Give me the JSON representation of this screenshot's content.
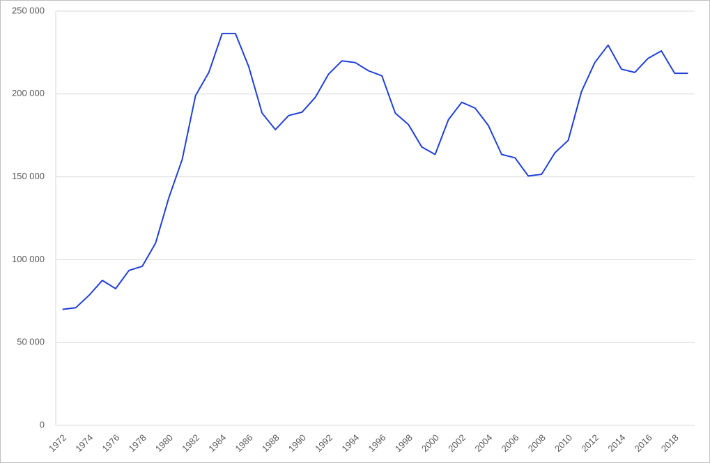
{
  "chart_data": {
    "type": "line",
    "categories": [
      "1972",
      null,
      "1974",
      null,
      "1976",
      null,
      "1978",
      null,
      "1980",
      null,
      "1982",
      null,
      "1984",
      null,
      "1986",
      null,
      "1988",
      null,
      "1990",
      null,
      "1992",
      null,
      "1994",
      null,
      "1996",
      null,
      "1998",
      null,
      "2000",
      null,
      "2002",
      null,
      "2004",
      null,
      "2006",
      null,
      "2008",
      null,
      "2010",
      null,
      "2012",
      null,
      "2014",
      null,
      "2016",
      null,
      "2018",
      null
    ],
    "values": [
      70000,
      71000,
      78500,
      87500,
      82500,
      93500,
      96000,
      110000,
      137500,
      160500,
      199000,
      213000,
      236500,
      236500,
      216500,
      188500,
      178500,
      187000,
      189000,
      198000,
      212000,
      220000,
      219000,
      214000,
      211000,
      188500,
      181500,
      168000,
      163500,
      184500,
      195000,
      191500,
      181000,
      163500,
      161500,
      150500,
      151500,
      164500,
      172000,
      201500,
      219000,
      229500,
      215000,
      213000,
      221500,
      226000,
      212500,
      212500
    ],
    "color": "#1f3fd8",
    "ylim": [
      0,
      250000
    ],
    "yticks": [
      0,
      {
        "value": 50000,
        "label": "50 000"
      },
      {
        "value": 100000,
        "label": "100 000"
      },
      {
        "value": 150000,
        "label": "150 000"
      },
      {
        "value": 200000,
        "label": "200 000"
      },
      {
        "value": 250000,
        "label": "250 000"
      }
    ],
    "grid": true
  }
}
